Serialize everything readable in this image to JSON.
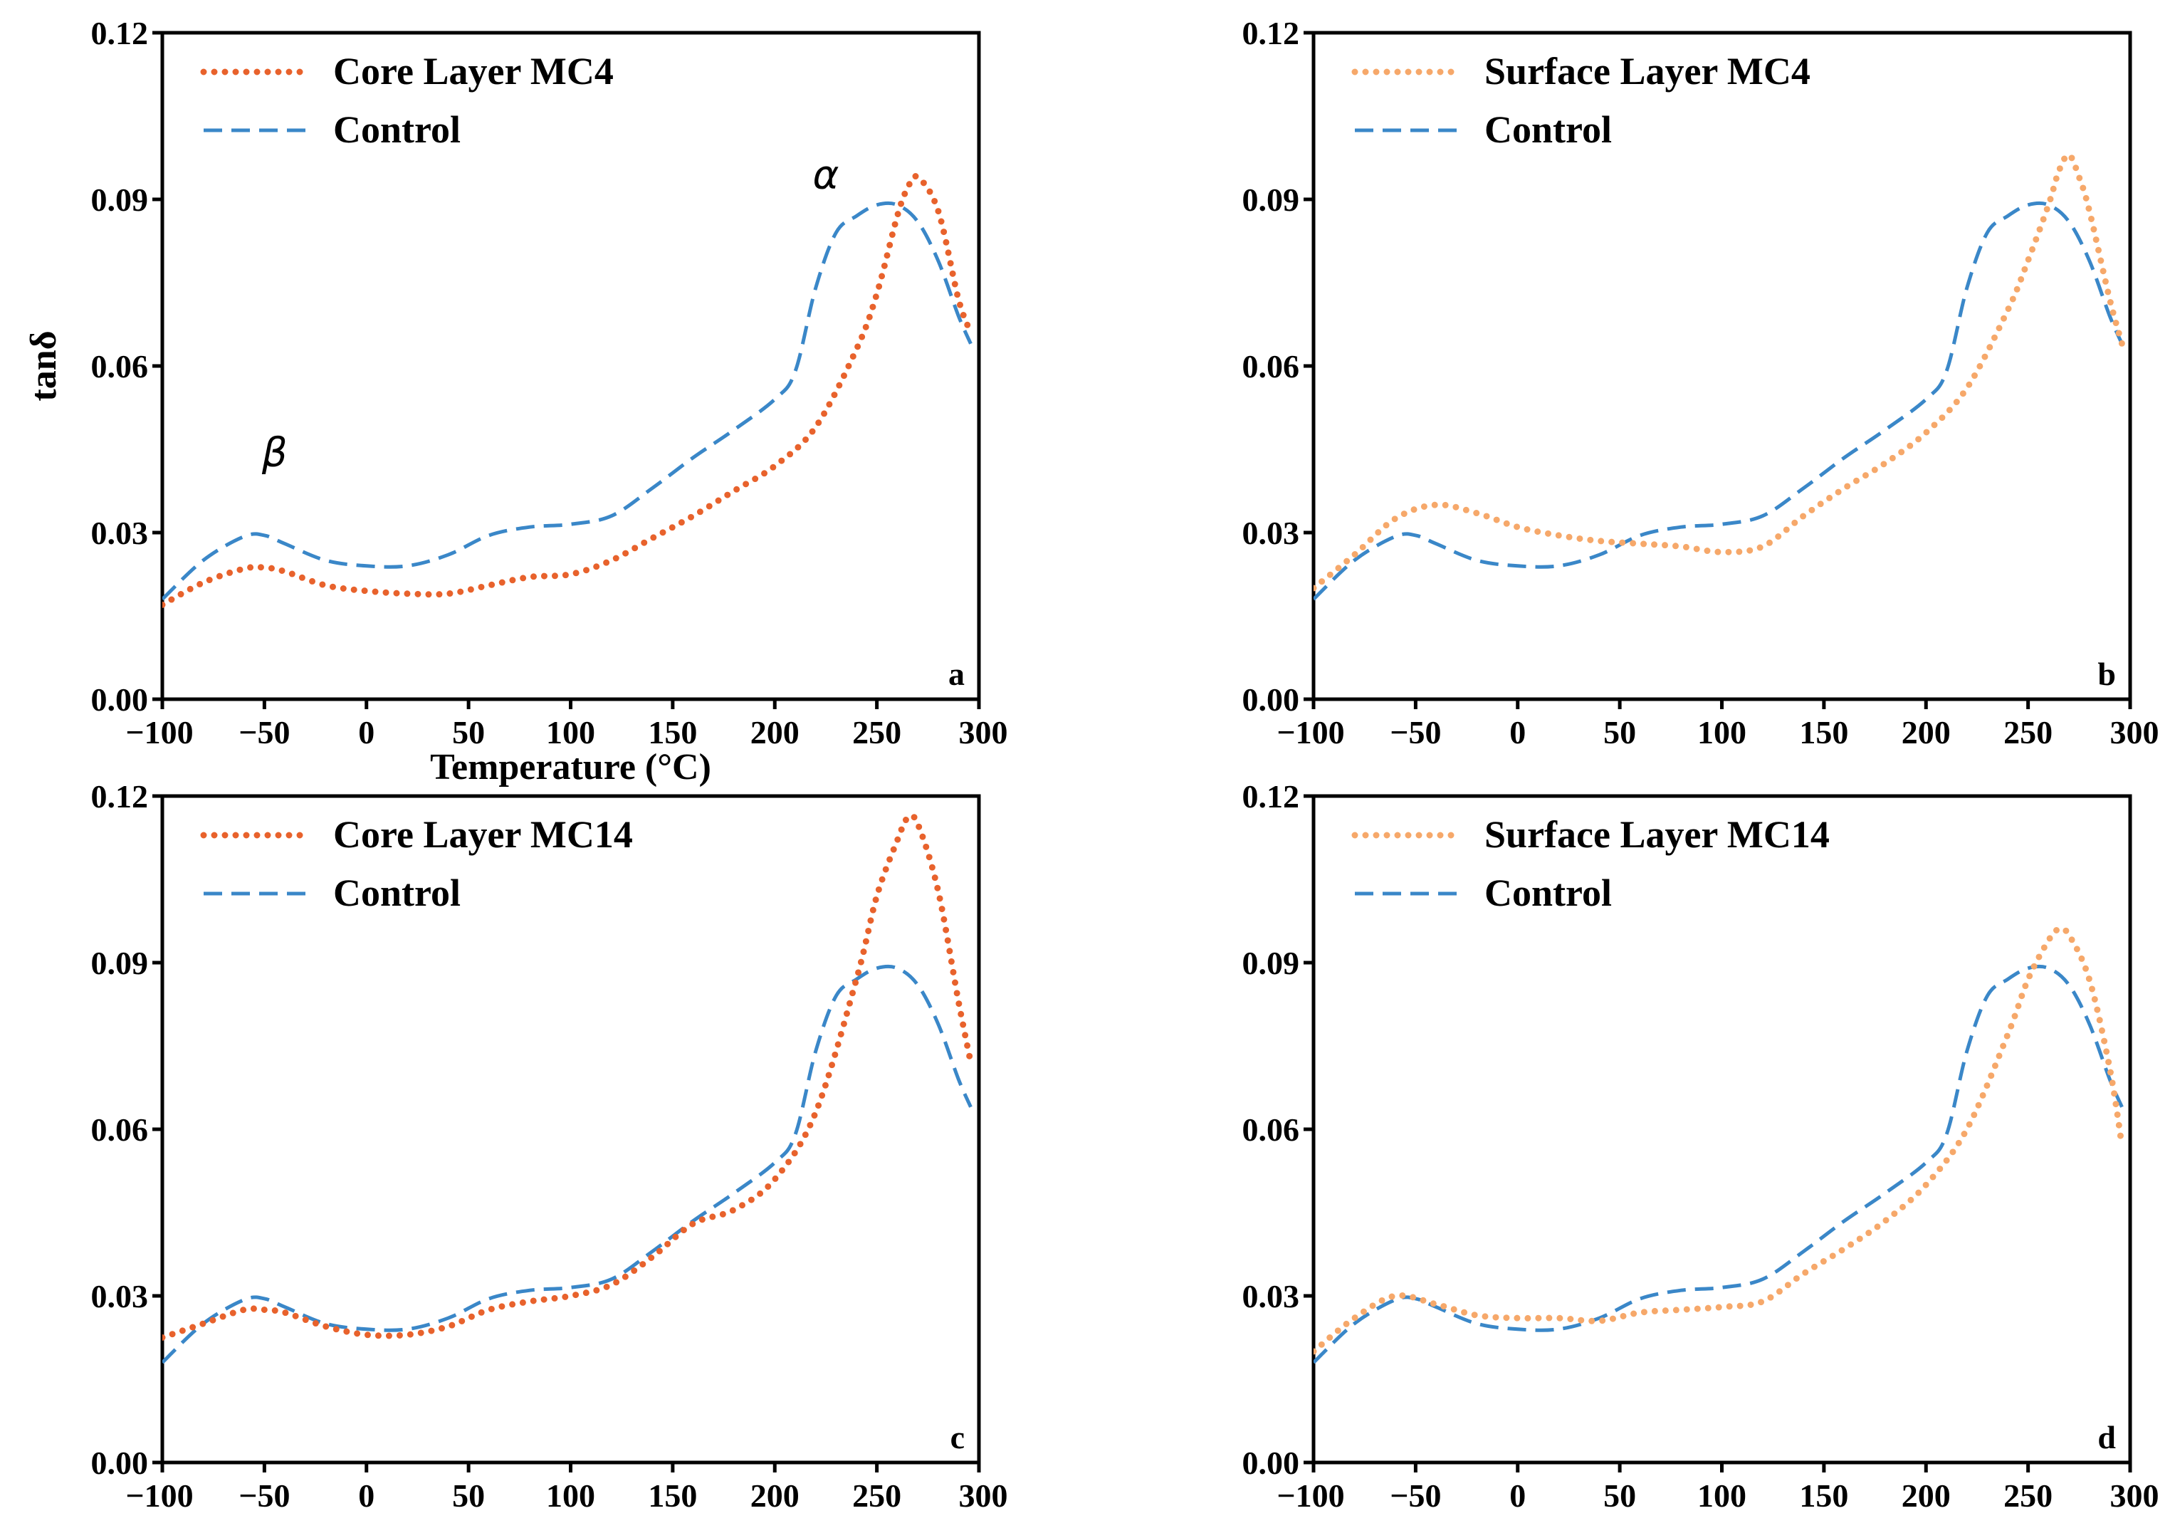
{
  "chart_data": [
    {
      "panel": "a",
      "type": "line",
      "xlabel": "Temperature (°C)",
      "ylabel": "tanδ",
      "xlim": [
        -100,
        300
      ],
      "ylim": [
        0,
        0.12
      ],
      "xticks": [
        "-100",
        "-50",
        "0",
        "50",
        "100",
        "150",
        "200",
        "250",
        "300"
      ],
      "yticks": [
        "0.00",
        "0.03",
        "0.06",
        "0.09",
        "0.12"
      ],
      "legend": "top-left",
      "annotations": [
        {
          "text": "β",
          "x": -45,
          "y": 0.042
        },
        {
          "text": "α",
          "x": 225,
          "y": 0.092
        }
      ],
      "series": [
        {
          "name": "Core Layer MC4",
          "style": "dotted",
          "color": "#E8622C",
          "x": [
            -100,
            -80,
            -60,
            -50,
            -40,
            -20,
            0,
            20,
            40,
            60,
            80,
            100,
            120,
            140,
            160,
            180,
            200,
            220,
            240,
            250,
            260,
            265,
            270,
            280,
            290,
            296
          ],
          "y": [
            0.017,
            0.021,
            0.0235,
            0.0237,
            0.023,
            0.0205,
            0.0195,
            0.019,
            0.019,
            0.0205,
            0.022,
            0.0225,
            0.025,
            0.029,
            0.033,
            0.0375,
            0.042,
            0.049,
            0.063,
            0.073,
            0.087,
            0.092,
            0.094,
            0.088,
            0.072,
            0.066
          ]
        },
        {
          "name": "Control",
          "style": "dashed",
          "color": "#3A87C8",
          "x": [
            -100,
            -80,
            -60,
            -50,
            -40,
            -20,
            0,
            20,
            40,
            60,
            80,
            100,
            120,
            140,
            160,
            180,
            200,
            210,
            220,
            230,
            240,
            250,
            260,
            270,
            280,
            290,
            296
          ],
          "y": [
            0.018,
            0.025,
            0.0293,
            0.0295,
            0.028,
            0.025,
            0.024,
            0.024,
            0.026,
            0.0295,
            0.031,
            0.0315,
            0.033,
            0.038,
            0.0435,
            0.0485,
            0.054,
            0.059,
            0.074,
            0.084,
            0.087,
            0.089,
            0.089,
            0.086,
            0.079,
            0.069,
            0.064
          ]
        }
      ]
    },
    {
      "panel": "b",
      "type": "line",
      "xlim": [
        -100,
        300
      ],
      "ylim": [
        0,
        0.12
      ],
      "xticks": [
        "-100",
        "-50",
        "0",
        "50",
        "100",
        "150",
        "200",
        "250",
        "300"
      ],
      "yticks": [
        "0.00",
        "0.03",
        "0.06",
        "0.09",
        "0.12"
      ],
      "legend": "top-left",
      "series": [
        {
          "name": "Surface Layer MC4",
          "style": "dotted",
          "color": "#F6A86A",
          "x": [
            -100,
            -80,
            -60,
            -40,
            -20,
            0,
            20,
            40,
            60,
            80,
            100,
            120,
            140,
            160,
            180,
            200,
            220,
            240,
            250,
            260,
            265,
            270,
            275,
            280,
            290,
            296
          ],
          "y": [
            0.02,
            0.026,
            0.0325,
            0.035,
            0.0335,
            0.031,
            0.0295,
            0.0285,
            0.028,
            0.0275,
            0.0265,
            0.0275,
            0.033,
            0.038,
            0.0425,
            0.048,
            0.056,
            0.07,
            0.079,
            0.089,
            0.095,
            0.098,
            0.094,
            0.088,
            0.072,
            0.064
          ]
        },
        {
          "name": "Control",
          "style": "dashed",
          "color": "#3A87C8",
          "x": [
            -100,
            -80,
            -60,
            -50,
            -40,
            -20,
            0,
            20,
            40,
            60,
            80,
            100,
            120,
            140,
            160,
            180,
            200,
            210,
            220,
            230,
            240,
            250,
            260,
            270,
            280,
            290,
            296
          ],
          "y": [
            0.018,
            0.025,
            0.0293,
            0.0295,
            0.028,
            0.025,
            0.024,
            0.024,
            0.026,
            0.0295,
            0.031,
            0.0315,
            0.033,
            0.038,
            0.0435,
            0.0485,
            0.054,
            0.059,
            0.074,
            0.084,
            0.087,
            0.089,
            0.089,
            0.086,
            0.079,
            0.069,
            0.064
          ]
        }
      ]
    },
    {
      "panel": "c",
      "type": "line",
      "xlim": [
        -100,
        300
      ],
      "ylim": [
        0,
        0.12
      ],
      "xticks": [
        "-100",
        "-50",
        "0",
        "50",
        "100",
        "150",
        "200",
        "250",
        "300"
      ],
      "yticks": [
        "0.00",
        "0.03",
        "0.06",
        "0.09",
        "0.12"
      ],
      "legend": "top-left",
      "series": [
        {
          "name": "Core Layer MC14",
          "style": "dotted",
          "color": "#E8622C",
          "x": [
            -100,
            -80,
            -60,
            -50,
            -40,
            -20,
            0,
            20,
            40,
            60,
            80,
            100,
            120,
            140,
            160,
            180,
            200,
            220,
            240,
            250,
            260,
            265,
            270,
            280,
            290,
            296
          ],
          "y": [
            0.0225,
            0.025,
            0.0275,
            0.0275,
            0.027,
            0.0245,
            0.023,
            0.023,
            0.0245,
            0.0275,
            0.029,
            0.03,
            0.032,
            0.037,
            0.043,
            0.0455,
            0.051,
            0.063,
            0.087,
            0.102,
            0.112,
            0.116,
            0.115,
            0.103,
            0.083,
            0.072
          ]
        },
        {
          "name": "Control",
          "style": "dashed",
          "color": "#3A87C8",
          "x": [
            -100,
            -80,
            -60,
            -50,
            -40,
            -20,
            0,
            20,
            40,
            60,
            80,
            100,
            120,
            140,
            160,
            180,
            200,
            210,
            220,
            230,
            240,
            250,
            260,
            270,
            280,
            290,
            296
          ],
          "y": [
            0.018,
            0.025,
            0.0293,
            0.0295,
            0.028,
            0.025,
            0.024,
            0.024,
            0.026,
            0.0295,
            0.031,
            0.0315,
            0.033,
            0.038,
            0.0435,
            0.0485,
            0.054,
            0.059,
            0.074,
            0.084,
            0.087,
            0.089,
            0.089,
            0.086,
            0.079,
            0.069,
            0.064
          ]
        }
      ]
    },
    {
      "panel": "d",
      "type": "line",
      "xlim": [
        -100,
        300
      ],
      "ylim": [
        0,
        0.12
      ],
      "xticks": [
        "-100",
        "-50",
        "0",
        "50",
        "100",
        "150",
        "200",
        "250",
        "300"
      ],
      "yticks": [
        "0.00",
        "0.03",
        "0.06",
        "0.09",
        "0.12"
      ],
      "legend": "top-left",
      "series": [
        {
          "name": "Surface Layer MC14",
          "style": "dotted",
          "color": "#F6A86A",
          "x": [
            -100,
            -80,
            -60,
            -40,
            -20,
            0,
            20,
            40,
            60,
            80,
            100,
            120,
            140,
            160,
            180,
            200,
            220,
            240,
            250,
            260,
            265,
            270,
            280,
            290,
            296
          ],
          "y": [
            0.02,
            0.026,
            0.03,
            0.0285,
            0.0265,
            0.026,
            0.026,
            0.0255,
            0.027,
            0.0275,
            0.028,
            0.029,
            0.034,
            0.0385,
            0.0435,
            0.05,
            0.06,
            0.077,
            0.087,
            0.094,
            0.096,
            0.095,
            0.087,
            0.071,
            0.057
          ]
        },
        {
          "name": "Control",
          "style": "dashed",
          "color": "#3A87C8",
          "x": [
            -100,
            -80,
            -60,
            -50,
            -40,
            -20,
            0,
            20,
            40,
            60,
            80,
            100,
            120,
            140,
            160,
            180,
            200,
            210,
            220,
            230,
            240,
            250,
            260,
            270,
            280,
            290,
            296
          ],
          "y": [
            0.018,
            0.025,
            0.0293,
            0.0295,
            0.028,
            0.025,
            0.024,
            0.024,
            0.026,
            0.0295,
            0.031,
            0.0315,
            0.033,
            0.038,
            0.0435,
            0.0485,
            0.054,
            0.059,
            0.074,
            0.084,
            0.087,
            0.089,
            0.089,
            0.086,
            0.079,
            0.069,
            0.064
          ]
        }
      ]
    }
  ]
}
